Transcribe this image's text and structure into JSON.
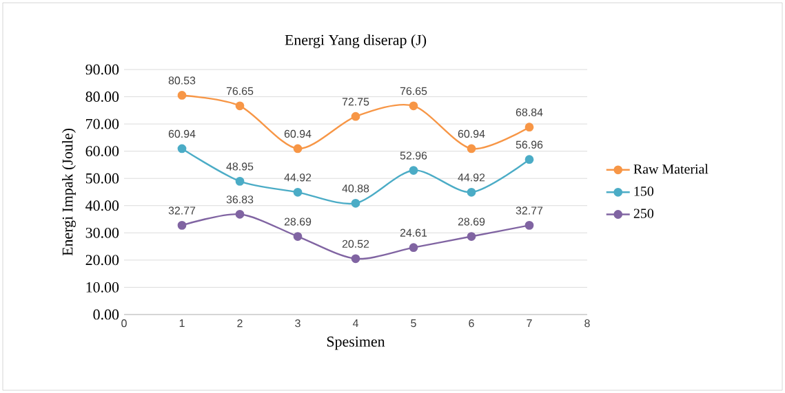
{
  "chart_data": {
    "type": "line",
    "title": "Energi Yang diserap (J)",
    "xlabel": "Spesimen",
    "ylabel": "Energi Impak (Joule)",
    "x": [
      1,
      2,
      3,
      4,
      5,
      6,
      7
    ],
    "series": [
      {
        "name": "Raw Material",
        "color": "#f79646",
        "values": [
          80.53,
          76.65,
          60.94,
          72.75,
          76.65,
          60.94,
          68.84
        ]
      },
      {
        "name": "150",
        "color": "#4bacc6",
        "values": [
          60.94,
          48.95,
          44.92,
          40.88,
          52.96,
          44.92,
          56.96
        ]
      },
      {
        "name": "250",
        "color": "#8064a2",
        "values": [
          32.77,
          36.83,
          28.69,
          20.52,
          24.61,
          28.69,
          32.77
        ]
      }
    ],
    "xlim": [
      0,
      8
    ],
    "xticks": [
      0,
      1,
      2,
      3,
      4,
      5,
      6,
      7,
      8
    ],
    "ylim": [
      0,
      90
    ],
    "yticks": [
      {
        "value": 0,
        "label": "0.00"
      },
      {
        "value": 10,
        "label": "10.00"
      },
      {
        "value": 20,
        "label": "20.00"
      },
      {
        "value": 30,
        "label": "30.00"
      },
      {
        "value": 40,
        "label": "40.00"
      },
      {
        "value": 50,
        "label": "50.00"
      },
      {
        "value": 60,
        "label": "60.00"
      },
      {
        "value": 70,
        "label": "70.00"
      },
      {
        "value": 80,
        "label": "80.00"
      },
      {
        "value": 90,
        "label": "90.00"
      }
    ],
    "grid": "y",
    "legend": "right",
    "marker": "circle",
    "line_style": "solid",
    "data_labels": true
  }
}
